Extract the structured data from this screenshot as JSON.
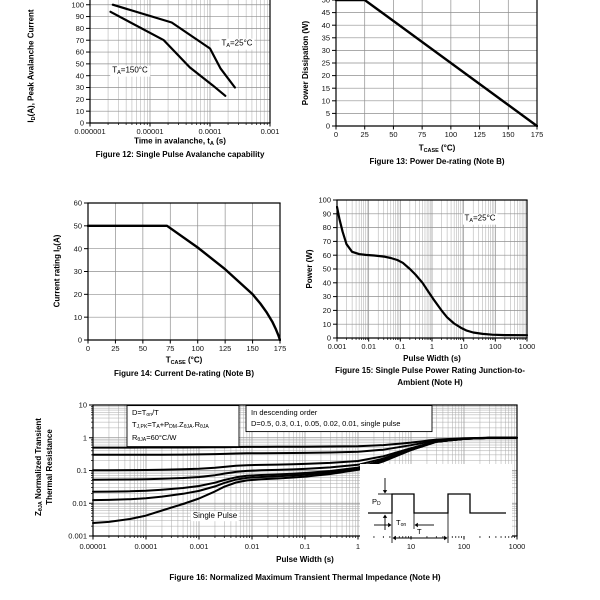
{
  "page": {
    "background": "#ffffff"
  },
  "colors": {
    "curve": "#000000",
    "grid_major": "#8f8f8f",
    "grid_minor": "#a9a9a9",
    "axis": "#000000",
    "text": "#000000"
  },
  "chart_data": [
    {
      "id": "fig12",
      "type": "line",
      "xscale": "log",
      "yscale": "linear",
      "xlim": [
        1e-06,
        0.001
      ],
      "ylim": [
        0,
        104
      ],
      "xticks": [
        1e-06,
        1e-05,
        0.0001,
        0.001
      ],
      "xtick_labels": [
        "0.000001",
        "0.00001",
        "0.0001",
        "0.001"
      ],
      "yticks": [
        0,
        10,
        20,
        30,
        40,
        50,
        60,
        70,
        80,
        90,
        100
      ],
      "xlabel": "Time in avalanche, t~A~ (s)",
      "ylabel": "I~D~(A), Peak Avalanche Current",
      "caption": "Figure 12: Single Pulse Avalanche capability",
      "series": [
        {
          "name": "T~A~=25°C",
          "points": [
            [
              2.4e-06,
              100
            ],
            [
              2.3e-05,
              85
            ],
            [
              0.0001,
              63
            ],
            [
              0.00015,
              46
            ],
            [
              0.00026,
              30
            ]
          ]
        },
        {
          "name": "T~A~=150°C",
          "points": [
            [
              2.2e-06,
              94
            ],
            [
              1.7e-05,
              70
            ],
            [
              4.6e-05,
              47
            ],
            [
              0.00011,
              32
            ],
            [
              0.00018,
              23
            ]
          ]
        }
      ],
      "annotations": [
        {
          "text": "T~A~=25°C"
        },
        {
          "text": "T~A~=150°C"
        }
      ]
    },
    {
      "id": "fig13",
      "type": "line",
      "xscale": "linear",
      "yscale": "linear",
      "xlim": [
        0,
        175
      ],
      "ylim": [
        0,
        50
      ],
      "xticks": [
        0,
        25,
        50,
        75,
        100,
        125,
        150,
        175
      ],
      "yticks": [
        0,
        5,
        10,
        15,
        20,
        25,
        30,
        35,
        40,
        45,
        50
      ],
      "xlabel": "T~CASE~ (°C)",
      "ylabel": "Power Dissipation (W)",
      "caption": "Figure 13: Power De-rating (Note B)",
      "series": [
        {
          "name": "power dissipation",
          "points": [
            [
              0,
              50
            ],
            [
              25,
              50
            ],
            [
              175,
              0
            ]
          ]
        }
      ],
      "annotations": []
    },
    {
      "id": "fig14",
      "type": "line",
      "xscale": "linear",
      "yscale": "linear",
      "xlim": [
        0,
        175
      ],
      "ylim": [
        0,
        60
      ],
      "xticks": [
        0,
        25,
        50,
        75,
        100,
        125,
        150,
        175
      ],
      "yticks": [
        0,
        10,
        20,
        30,
        40,
        50,
        60
      ],
      "xlabel": "T~CASE~ (°C)",
      "ylabel": "Current rating I~D~(A)",
      "caption": "Figure 14: Current De-rating (Note B)",
      "series": [
        {
          "name": "current rating",
          "points": [
            [
              0,
              50
            ],
            [
              72,
              50
            ],
            [
              100,
              40.5
            ],
            [
              125,
              31
            ],
            [
              150,
              20
            ],
            [
              157,
              16
            ],
            [
              163,
              12
            ],
            [
              168,
              8
            ],
            [
              171,
              5
            ],
            [
              173.5,
              2
            ],
            [
              175,
              0
            ]
          ]
        }
      ],
      "annotations": []
    },
    {
      "id": "fig15",
      "type": "line",
      "xscale": "log",
      "yscale": "linear",
      "xlim": [
        0.001,
        1000
      ],
      "ylim": [
        0,
        100
      ],
      "xticks": [
        0.001,
        0.01,
        0.1,
        1,
        10,
        100,
        1000
      ],
      "xtick_labels": [
        "0.001",
        "0.01",
        "0.1",
        "1",
        "10",
        "100",
        "1000"
      ],
      "yticks": [
        0,
        10,
        20,
        30,
        40,
        50,
        60,
        70,
        80,
        90,
        100
      ],
      "xlabel": "Pulse Width (s)",
      "ylabel": "Power (W)",
      "caption_lines": [
        "Figure 15: Single Pulse Power Rating Junction-to-",
        "Ambient (Note H)"
      ],
      "series": [
        {
          "name": "T~A~=25°C",
          "points": [
            [
              0.001,
              95
            ],
            [
              0.0012,
              86
            ],
            [
              0.0015,
              77
            ],
            [
              0.002,
              68
            ],
            [
              0.003,
              62.5
            ],
            [
              0.005,
              60.8
            ],
            [
              0.008,
              60.2
            ],
            [
              0.015,
              59.8
            ],
            [
              0.03,
              59
            ],
            [
              0.05,
              58
            ],
            [
              0.08,
              56.5
            ],
            [
              0.12,
              54.5
            ],
            [
              0.2,
              50
            ],
            [
              0.3,
              46
            ],
            [
              0.5,
              40
            ],
            [
              0.8,
              33
            ],
            [
              1.2,
              27
            ],
            [
              2,
              20
            ],
            [
              3,
              15
            ],
            [
              5,
              10.5
            ],
            [
              8,
              7.5
            ],
            [
              12,
              5.5
            ],
            [
              20,
              4
            ],
            [
              40,
              3
            ],
            [
              80,
              2.4
            ],
            [
              200,
              2.1
            ],
            [
              1000,
              2
            ]
          ]
        }
      ],
      "annotations": [
        {
          "text": "T~A~=25°C"
        }
      ]
    },
    {
      "id": "fig16",
      "type": "line",
      "xscale": "log",
      "yscale": "log",
      "xlim": [
        1e-05,
        1000.0
      ],
      "ylim": [
        0.001,
        10
      ],
      "xticks": [
        1e-05,
        0.0001,
        0.001,
        0.01,
        0.1,
        1,
        10,
        100,
        1000
      ],
      "xtick_labels": [
        "0.00001",
        "0.0001",
        "0.001",
        "0.01",
        "0.1",
        "1",
        "10",
        "100",
        "1000"
      ],
      "yticks": [
        10,
        1,
        0.1,
        0.01,
        0.001
      ],
      "ytick_labels": [
        "10",
        "1",
        "0.1",
        "0.01",
        "0.001"
      ],
      "xlabel": "Pulse Width (s)",
      "ylabel_lines": [
        "Z~θJA~ Normalized Transient",
        "Thermal Resistance"
      ],
      "caption": "Figure 16: Normalized Maximum Transient Thermal Impedance (Note H)",
      "d_values": [
        0.5,
        0.3,
        0.1,
        0.05,
        0.02,
        0.01
      ],
      "single_pulse": [
        [
          1e-05,
          0.0025
        ],
        [
          2e-05,
          0.0027
        ],
        [
          5e-05,
          0.0033
        ],
        [
          0.0001,
          0.0042
        ],
        [
          0.0002,
          0.006
        ],
        [
          0.0005,
          0.0095
        ],
        [
          0.001,
          0.014
        ],
        [
          0.002,
          0.023
        ],
        [
          0.003,
          0.032
        ],
        [
          0.005,
          0.043
        ],
        [
          0.008,
          0.05
        ],
        [
          0.015,
          0.054
        ],
        [
          0.03,
          0.057
        ],
        [
          0.06,
          0.061
        ],
        [
          0.1,
          0.065
        ],
        [
          0.3,
          0.078
        ],
        [
          1,
          0.105
        ],
        [
          3,
          0.19
        ],
        [
          10,
          0.42
        ],
        [
          30,
          0.75
        ],
        [
          100,
          0.92
        ],
        [
          300,
          0.99
        ],
        [
          1000,
          1.0
        ]
      ],
      "formula_lines": [
        "D=T~on~/T",
        "T~J,PK~=T~A~+P~DM~.Z~θJA~.R~θJA~",
        "R~θJA~=60°C/W"
      ],
      "legend_lines": [
        "In descending order",
        "D=0.5, 0.3, 0.1, 0.05, 0.02, 0.01, single pulse"
      ],
      "annotations": [
        {
          "text": "Single Pulse"
        }
      ],
      "inset": {
        "labels": {
          "pd": "P~D~",
          "ton": "T~on~",
          "t": "T"
        }
      }
    }
  ]
}
